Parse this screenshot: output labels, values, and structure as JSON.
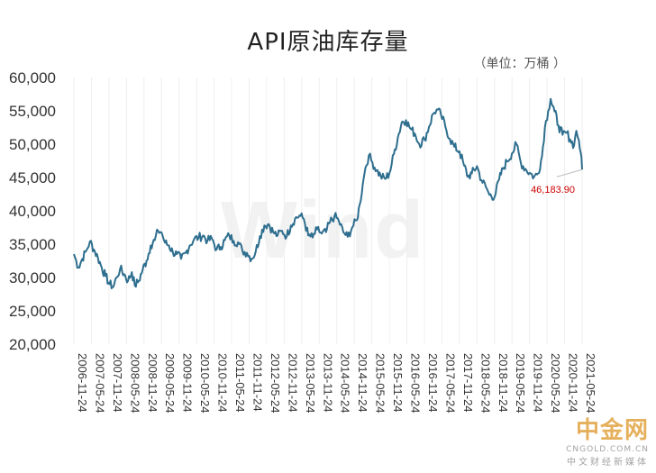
{
  "chart_data": {
    "type": "line",
    "title": "API原油库存量",
    "unit_label": "（单位：万桶  ）",
    "ylim": [
      20000,
      60000
    ],
    "y_ticks": [
      20000,
      25000,
      30000,
      35000,
      40000,
      45000,
      50000,
      55000,
      60000
    ],
    "y_tick_labels": [
      "20,000",
      "25,000",
      "30,000",
      "35,000",
      "40,000",
      "45,000",
      "50,000",
      "55,000",
      "60,000"
    ],
    "x_range": [
      "2006-11-24",
      "2021-05-24"
    ],
    "x_tick_labels": [
      "2006-11-24",
      "2007-05-24",
      "2007-11-24",
      "2008-05-24",
      "2008-11-24",
      "2009-05-24",
      "2009-11-24",
      "2010-05-24",
      "2010-11-24",
      "2011-05-24",
      "2011-11-24",
      "2012-05-24",
      "2012-11-24",
      "2013-05-24",
      "2013-11-24",
      "2014-05-24",
      "2014-11-24",
      "2015-05-24",
      "2015-11-24",
      "2016-05-24",
      "2016-11-24",
      "2017-05-24",
      "2017-11-24",
      "2018-05-24",
      "2018-11-24",
      "2019-05-24",
      "2019-11-24",
      "2020-05-24",
      "2020-11-24",
      "2021-05-24"
    ],
    "series": [
      {
        "color": "#2e6e8e",
        "points": [
          [
            "2006-11-24",
            33500
          ],
          [
            "2007-01-10",
            31500
          ],
          [
            "2007-02-20",
            32800
          ],
          [
            "2007-04-01",
            34000
          ],
          [
            "2007-05-10",
            35400
          ],
          [
            "2007-06-20",
            34200
          ],
          [
            "2007-08-01",
            33000
          ],
          [
            "2007-09-10",
            31500
          ],
          [
            "2007-10-20",
            30200
          ],
          [
            "2007-12-01",
            29000
          ],
          [
            "2008-01-10",
            28600
          ],
          [
            "2008-02-10",
            30000
          ],
          [
            "2008-03-20",
            31300
          ],
          [
            "2008-05-01",
            30500
          ],
          [
            "2008-06-10",
            29500
          ],
          [
            "2008-07-20",
            30800
          ],
          [
            "2008-08-20",
            28800
          ],
          [
            "2008-10-01",
            29500
          ],
          [
            "2008-11-10",
            31200
          ],
          [
            "2008-12-20",
            32500
          ],
          [
            "2009-02-01",
            34800
          ],
          [
            "2009-03-15",
            35600
          ],
          [
            "2009-04-20",
            37000
          ],
          [
            "2009-05-24",
            36800
          ],
          [
            "2009-07-01",
            35200
          ],
          [
            "2009-08-10",
            34800
          ],
          [
            "2009-09-20",
            33800
          ],
          [
            "2009-11-01",
            33500
          ],
          [
            "2009-12-15",
            32800
          ],
          [
            "2010-02-01",
            33700
          ],
          [
            "2010-03-15",
            34800
          ],
          [
            "2010-05-01",
            35800
          ],
          [
            "2010-06-15",
            36000
          ],
          [
            "2010-08-01",
            36300
          ],
          [
            "2010-09-15",
            35500
          ],
          [
            "2010-11-01",
            35800
          ],
          [
            "2010-12-20",
            34200
          ],
          [
            "2011-02-01",
            34600
          ],
          [
            "2011-03-15",
            35600
          ],
          [
            "2011-05-01",
            36300
          ],
          [
            "2011-06-15",
            35500
          ],
          [
            "2011-08-01",
            35300
          ],
          [
            "2011-09-15",
            34000
          ],
          [
            "2011-11-01",
            33700
          ],
          [
            "2011-12-20",
            32800
          ],
          [
            "2012-02-01",
            33900
          ],
          [
            "2012-03-15",
            36200
          ],
          [
            "2012-05-01",
            37800
          ],
          [
            "2012-06-15",
            38000
          ],
          [
            "2012-08-01",
            36800
          ],
          [
            "2012-09-15",
            36300
          ],
          [
            "2012-11-01",
            37000
          ],
          [
            "2012-12-20",
            36200
          ],
          [
            "2013-02-01",
            37800
          ],
          [
            "2013-03-15",
            38800
          ],
          [
            "2013-05-01",
            39300
          ],
          [
            "2013-06-15",
            38800
          ],
          [
            "2013-08-01",
            36300
          ],
          [
            "2013-09-15",
            36000
          ],
          [
            "2013-11-01",
            37200
          ],
          [
            "2013-12-20",
            36600
          ],
          [
            "2014-02-01",
            36800
          ],
          [
            "2014-03-15",
            38300
          ],
          [
            "2014-05-01",
            39200
          ],
          [
            "2014-06-15",
            38500
          ],
          [
            "2014-08-01",
            36800
          ],
          [
            "2014-09-15",
            36100
          ],
          [
            "2014-11-01",
            37500
          ],
          [
            "2014-12-20",
            38600
          ],
          [
            "2015-01-20",
            41000
          ],
          [
            "2015-02-20",
            44000
          ],
          [
            "2015-03-20",
            46500
          ],
          [
            "2015-04-24",
            48300
          ],
          [
            "2015-06-01",
            47200
          ],
          [
            "2015-07-15",
            46100
          ],
          [
            "2015-08-25",
            45200
          ],
          [
            "2015-10-10",
            44800
          ],
          [
            "2015-11-24",
            45600
          ],
          [
            "2016-01-10",
            48500
          ],
          [
            "2016-02-20",
            51000
          ],
          [
            "2016-04-01",
            53300
          ],
          [
            "2016-05-15",
            53600
          ],
          [
            "2016-07-01",
            52300
          ],
          [
            "2016-08-15",
            51600
          ],
          [
            "2016-10-01",
            50000
          ],
          [
            "2016-11-24",
            50700
          ],
          [
            "2017-01-10",
            52600
          ],
          [
            "2017-02-20",
            54500
          ],
          [
            "2017-03-31",
            55200
          ],
          [
            "2017-05-15",
            54400
          ],
          [
            "2017-06-30",
            52600
          ],
          [
            "2017-08-15",
            50800
          ],
          [
            "2017-10-01",
            49600
          ],
          [
            "2017-11-24",
            48900
          ],
          [
            "2018-01-10",
            46800
          ],
          [
            "2018-02-20",
            45100
          ],
          [
            "2018-04-01",
            45600
          ],
          [
            "2018-05-24",
            46700
          ],
          [
            "2018-07-10",
            44600
          ],
          [
            "2018-08-25",
            43600
          ],
          [
            "2018-10-01",
            42400
          ],
          [
            "2018-11-24",
            42100
          ],
          [
            "2019-01-10",
            44700
          ],
          [
            "2019-02-20",
            46300
          ],
          [
            "2019-04-01",
            47400
          ],
          [
            "2019-05-24",
            48600
          ],
          [
            "2019-07-10",
            50000
          ],
          [
            "2019-08-25",
            47200
          ],
          [
            "2019-10-10",
            46300
          ],
          [
            "2019-11-24",
            45700
          ],
          [
            "2020-01-10",
            45100
          ],
          [
            "2020-02-20",
            45600
          ],
          [
            "2020-04-01",
            48200
          ],
          [
            "2020-05-01",
            52500
          ],
          [
            "2020-06-05",
            55000
          ],
          [
            "2020-06-30",
            56800
          ],
          [
            "2020-08-10",
            54900
          ],
          [
            "2020-09-20",
            52800
          ],
          [
            "2020-11-01",
            51400
          ],
          [
            "2020-12-15",
            51700
          ],
          [
            "2021-01-20",
            50700
          ],
          [
            "2021-03-01",
            49800
          ],
          [
            "2021-03-25",
            52000
          ],
          [
            "2021-04-20",
            50600
          ],
          [
            "2021-05-10",
            48700
          ],
          [
            "2021-05-24",
            46184
          ]
        ]
      }
    ],
    "annotations": [
      {
        "text": "46,183.90",
        "x": "2021-05-24",
        "y": 46183.9,
        "color": "#cc0000"
      }
    ],
    "grid": "vertical"
  },
  "watermark": {
    "center_text": "Wind",
    "brand": "中金网",
    "site": "CNGOLD.COM.CN",
    "cn_tagline": "中文财经新媒体"
  }
}
